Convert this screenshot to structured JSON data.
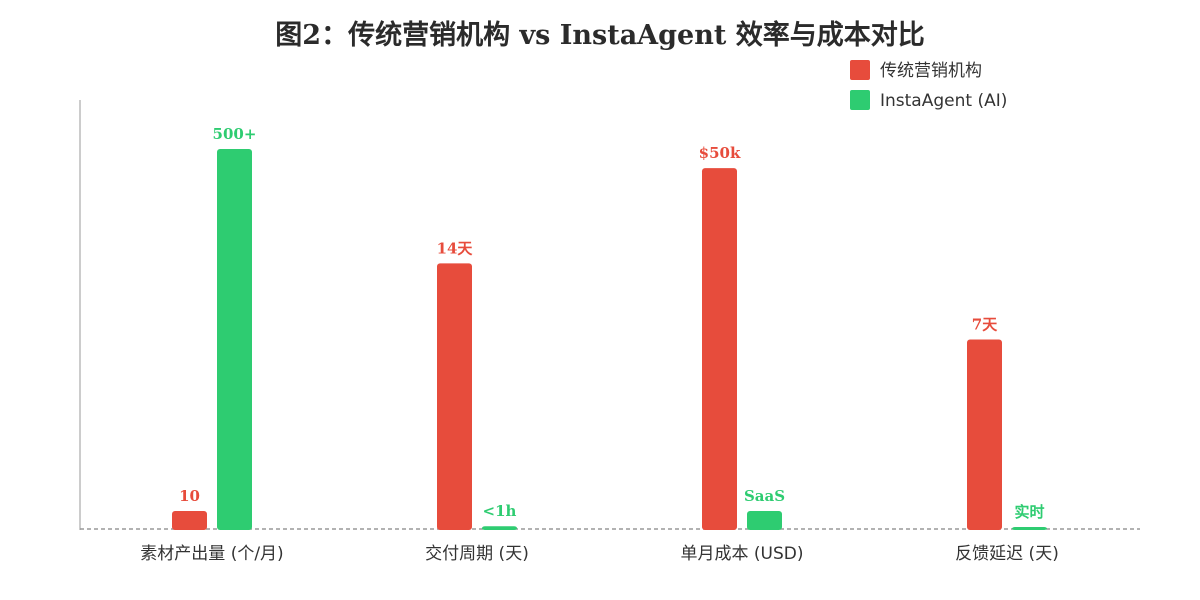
{
  "chart_data": {
    "type": "bar",
    "title": "图2：传统营销机构 vs InstaAgent 效率与成本对比",
    "xlabel": "",
    "ylabel": "",
    "ylim": [
      0,
      105
    ],
    "grid": false,
    "legend_position": "top-right",
    "categories": [
      "素材产出量 (个/月)",
      "交付周期 (天)",
      "单月成本 (USD)",
      "反馈延迟 (天)"
    ],
    "series": [
      {
        "name": "传统营销机构",
        "color": "#e74c3c",
        "values": [
          5,
          70,
          95,
          50
        ],
        "labels": [
          "10",
          "14天",
          "$50k",
          "7天"
        ]
      },
      {
        "name": "InstaAgent (AI)",
        "color": "#2ecc71",
        "values": [
          100,
          1,
          5,
          0.5
        ],
        "labels": [
          "500+",
          "<1h",
          "SaaS",
          "实时"
        ]
      }
    ]
  }
}
